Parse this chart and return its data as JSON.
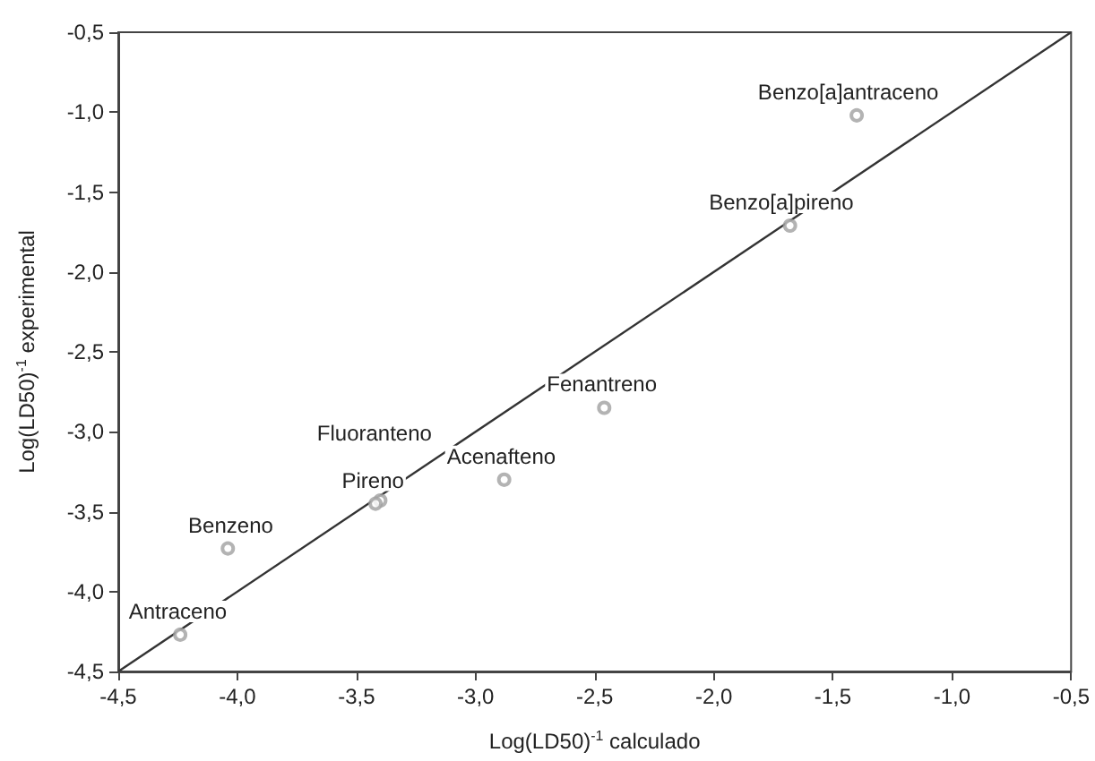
{
  "chart_data": {
    "type": "scatter",
    "xlabel": "Log(LD50)$^{-1}$ calculado",
    "ylabel": "Log(LD50)$^{-1}$ experimental",
    "xlim": [
      -4.5,
      -0.5
    ],
    "ylim": [
      -4.5,
      -0.5
    ],
    "xticks": [
      {
        "value": -4.5,
        "label": "-4,5"
      },
      {
        "value": -4.0,
        "label": "-4,0"
      },
      {
        "value": -3.5,
        "label": "-3,5"
      },
      {
        "value": -3.0,
        "label": "-3,0"
      },
      {
        "value": -2.5,
        "label": "-2,5"
      },
      {
        "value": -2.0,
        "label": "-2,0"
      },
      {
        "value": -1.5,
        "label": "-1,5"
      },
      {
        "value": -1.0,
        "label": "-1,0"
      },
      {
        "value": -0.5,
        "label": "-0,5"
      }
    ],
    "yticks": [
      {
        "value": -4.5,
        "label": "-4,5"
      },
      {
        "value": -4.0,
        "label": "-4,0"
      },
      {
        "value": -3.5,
        "label": "-3,5"
      },
      {
        "value": -3.0,
        "label": "-3,0"
      },
      {
        "value": -2.5,
        "label": "-2,5"
      },
      {
        "value": -2.0,
        "label": "-2,0"
      },
      {
        "value": -1.5,
        "label": "-1,5"
      },
      {
        "value": -1.0,
        "label": "-1,0"
      },
      {
        "value": -0.5,
        "label": "-0,5"
      }
    ],
    "grid": false,
    "marker": "circle",
    "series": [
      {
        "color": "#a0a0a0",
        "x": [
          -1.4,
          -1.68,
          -2.46,
          -2.88,
          -3.4,
          -3.42,
          -4.04,
          -4.24
        ],
        "values": [
          -1.02,
          -1.71,
          -2.85,
          -3.3,
          -3.43,
          -3.45,
          -3.73,
          -4.27
        ]
      },
      {
        "type": "line",
        "color": "#333333",
        "marker": "none",
        "line_style": "solid",
        "x": [
          -4.5,
          -0.5
        ],
        "values": [
          -4.5,
          -0.5
        ]
      }
    ],
    "annotations": [
      {
        "text": "Benzo[a]antraceno",
        "x": -1.4,
        "y": -1.02
      },
      {
        "text": "Benzo[a]pireno",
        "x": -1.68,
        "y": -1.71
      },
      {
        "text": "Fenantreno",
        "x": -2.46,
        "y": -2.85
      },
      {
        "text": "Acenafteno",
        "x": -2.88,
        "y": -3.3
      },
      {
        "text": "Fluoranteno",
        "x": -3.4,
        "y": -3.43
      },
      {
        "text": "Pireno",
        "x": -3.42,
        "y": -3.45
      },
      {
        "text": "Benzeno",
        "x": -4.04,
        "y": -3.73
      },
      {
        "text": "Antraceno",
        "x": -4.24,
        "y": -4.27
      }
    ]
  }
}
